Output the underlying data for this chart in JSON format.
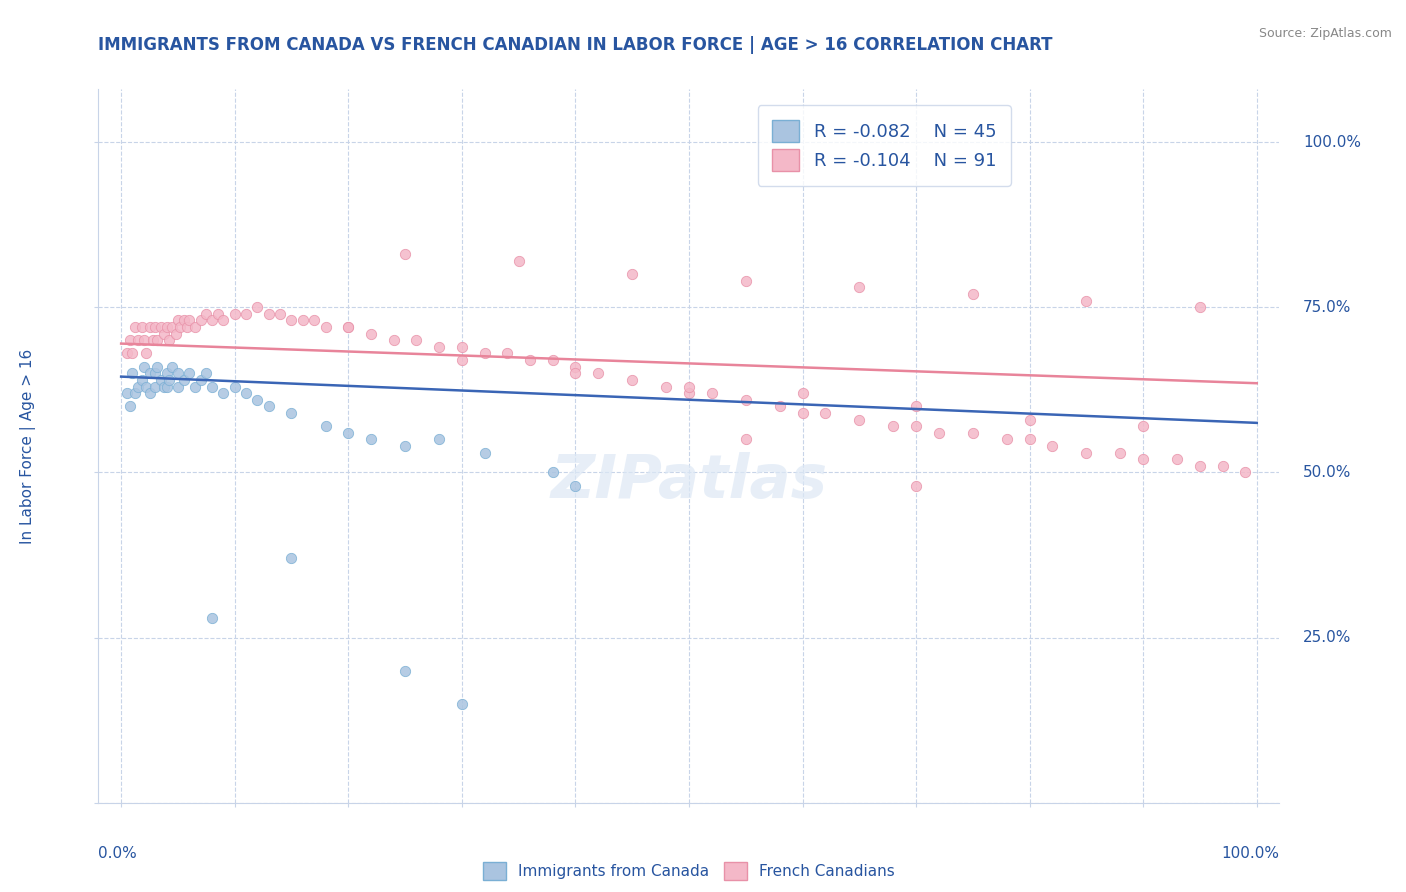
{
  "title": "IMMIGRANTS FROM CANADA VS FRENCH CANADIAN IN LABOR FORCE | AGE > 16 CORRELATION CHART",
  "source_text": "Source: ZipAtlas.com",
  "ylabel": "In Labor Force | Age > 16",
  "xlim": [
    -0.02,
    1.02
  ],
  "ylim": [
    0.0,
    1.08
  ],
  "xticks": [
    0.0,
    0.1,
    0.2,
    0.3,
    0.4,
    0.5,
    0.6,
    0.7,
    0.8,
    0.9,
    1.0
  ],
  "xtick_labels_bottom": [
    "0.0%",
    "",
    "",
    "",
    "",
    "",
    "",
    "",
    "",
    "",
    "100.0%"
  ],
  "yticks": [
    0.0,
    0.25,
    0.5,
    0.75,
    1.0
  ],
  "ytick_labels_right": [
    "",
    "25.0%",
    "50.0%",
    "75.0%",
    "100.0%"
  ],
  "blue_color": "#aac4e0",
  "blue_edge_color": "#7aafd4",
  "pink_color": "#f4b8c8",
  "pink_edge_color": "#e891a8",
  "blue_line_color": "#3a65b5",
  "pink_line_color": "#e8849a",
  "text_color": "#2855a0",
  "grid_color": "#c8d4e8",
  "grid_linestyle": "--",
  "legend_R1": "R = -0.082",
  "legend_N1": "N = 45",
  "legend_R2": "R = -0.104",
  "legend_N2": "N = 91",
  "blue_scatter_x": [
    0.005,
    0.008,
    0.01,
    0.012,
    0.015,
    0.018,
    0.02,
    0.022,
    0.025,
    0.025,
    0.03,
    0.03,
    0.032,
    0.035,
    0.038,
    0.04,
    0.04,
    0.042,
    0.045,
    0.05,
    0.05,
    0.055,
    0.06,
    0.065,
    0.07,
    0.075,
    0.08,
    0.09,
    0.1,
    0.11,
    0.12,
    0.13,
    0.15,
    0.18,
    0.2,
    0.22,
    0.25,
    0.28,
    0.32,
    0.38,
    0.4,
    0.15,
    0.08,
    0.25,
    0.3
  ],
  "blue_scatter_y": [
    0.62,
    0.6,
    0.65,
    0.62,
    0.63,
    0.64,
    0.66,
    0.63,
    0.65,
    0.62,
    0.65,
    0.63,
    0.66,
    0.64,
    0.63,
    0.65,
    0.63,
    0.64,
    0.66,
    0.65,
    0.63,
    0.64,
    0.65,
    0.63,
    0.64,
    0.65,
    0.63,
    0.62,
    0.63,
    0.62,
    0.61,
    0.6,
    0.59,
    0.57,
    0.56,
    0.55,
    0.54,
    0.55,
    0.53,
    0.5,
    0.48,
    0.37,
    0.28,
    0.2,
    0.15
  ],
  "pink_scatter_x": [
    0.005,
    0.008,
    0.01,
    0.012,
    0.015,
    0.018,
    0.02,
    0.022,
    0.025,
    0.028,
    0.03,
    0.032,
    0.035,
    0.038,
    0.04,
    0.042,
    0.045,
    0.048,
    0.05,
    0.052,
    0.055,
    0.058,
    0.06,
    0.065,
    0.07,
    0.075,
    0.08,
    0.085,
    0.09,
    0.1,
    0.11,
    0.12,
    0.13,
    0.14,
    0.15,
    0.16,
    0.17,
    0.18,
    0.2,
    0.22,
    0.24,
    0.26,
    0.28,
    0.3,
    0.32,
    0.34,
    0.36,
    0.38,
    0.4,
    0.42,
    0.45,
    0.48,
    0.5,
    0.52,
    0.55,
    0.58,
    0.6,
    0.62,
    0.65,
    0.68,
    0.7,
    0.72,
    0.75,
    0.78,
    0.8,
    0.82,
    0.85,
    0.88,
    0.9,
    0.93,
    0.95,
    0.97,
    0.99,
    0.25,
    0.35,
    0.45,
    0.55,
    0.65,
    0.75,
    0.85,
    0.95,
    0.3,
    0.4,
    0.5,
    0.6,
    0.7,
    0.8,
    0.9,
    0.2,
    0.55,
    0.7
  ],
  "pink_scatter_y": [
    0.68,
    0.7,
    0.68,
    0.72,
    0.7,
    0.72,
    0.7,
    0.68,
    0.72,
    0.7,
    0.72,
    0.7,
    0.72,
    0.71,
    0.72,
    0.7,
    0.72,
    0.71,
    0.73,
    0.72,
    0.73,
    0.72,
    0.73,
    0.72,
    0.73,
    0.74,
    0.73,
    0.74,
    0.73,
    0.74,
    0.74,
    0.75,
    0.74,
    0.74,
    0.73,
    0.73,
    0.73,
    0.72,
    0.72,
    0.71,
    0.7,
    0.7,
    0.69,
    0.69,
    0.68,
    0.68,
    0.67,
    0.67,
    0.66,
    0.65,
    0.64,
    0.63,
    0.62,
    0.62,
    0.61,
    0.6,
    0.59,
    0.59,
    0.58,
    0.57,
    0.57,
    0.56,
    0.56,
    0.55,
    0.55,
    0.54,
    0.53,
    0.53,
    0.52,
    0.52,
    0.51,
    0.51,
    0.5,
    0.83,
    0.82,
    0.8,
    0.79,
    0.78,
    0.77,
    0.76,
    0.75,
    0.67,
    0.65,
    0.63,
    0.62,
    0.6,
    0.58,
    0.57,
    0.72,
    0.55,
    0.48
  ],
  "blue_trend_y_start": 0.645,
  "blue_trend_y_end": 0.575,
  "pink_trend_y_start": 0.695,
  "pink_trend_y_end": 0.635,
  "title_fontsize": 12,
  "label_fontsize": 11,
  "tick_fontsize": 11,
  "legend_fontsize": 13,
  "marker_size": 55,
  "background_color": "#ffffff"
}
